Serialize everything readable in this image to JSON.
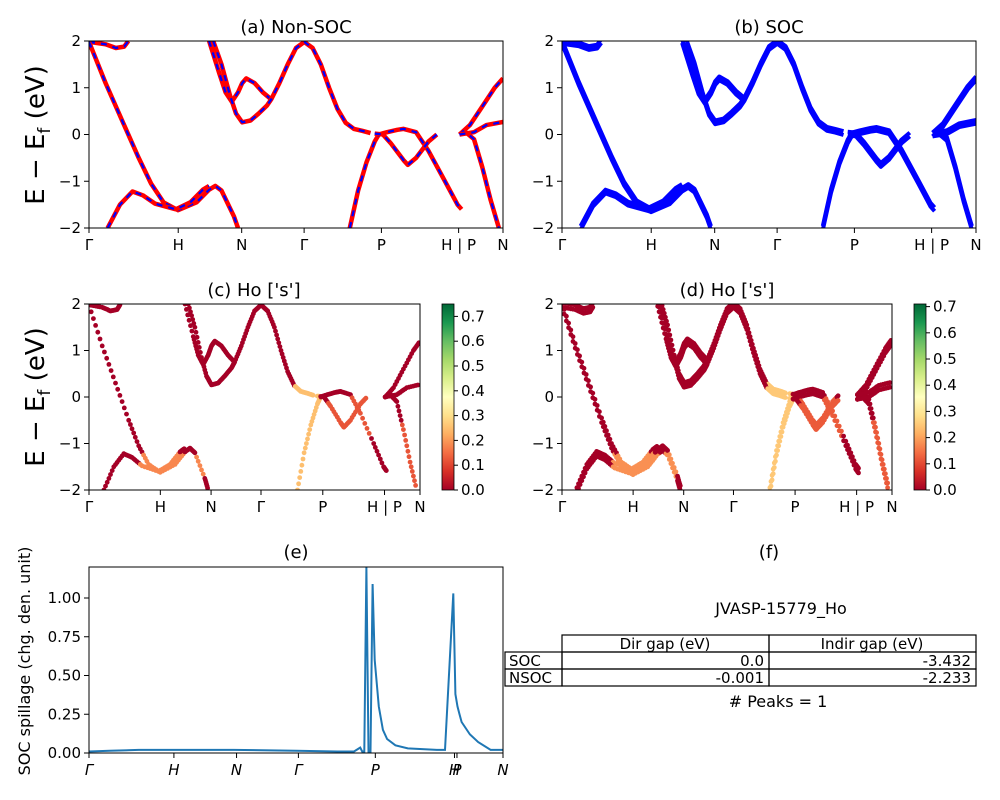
{
  "figure": {
    "ylabel": "E − E_f (eV)",
    "spillage_ylabel": "SOC spillage (chg. den. unit)"
  },
  "chart_data": [
    {
      "id": "a",
      "type": "line",
      "title": "(a) Non-SOC",
      "ylim": [
        -2,
        2
      ],
      "yticks": [
        "−2",
        "−1",
        "0",
        "1",
        "2"
      ],
      "kpoints": [
        "Γ",
        "H",
        "N",
        "Γ",
        "P",
        "H | P",
        "N"
      ],
      "series": [
        {
          "color": "#ff0000",
          "dash_color": "#0000ff"
        }
      ]
    },
    {
      "id": "b",
      "type": "line",
      "title": "(b) SOC",
      "ylim": [
        -2,
        2
      ],
      "yticks": [
        "−2",
        "−1",
        "0",
        "1",
        "2"
      ],
      "kpoints": [
        "Γ",
        "H",
        "N",
        "Γ",
        "P",
        "H | P",
        "N"
      ],
      "series": [
        {
          "color": "#0000ff"
        }
      ]
    },
    {
      "id": "c",
      "type": "scatter",
      "title": "(c)  Ho ['s']",
      "ylim": [
        -2,
        2
      ],
      "yticks": [
        "−2",
        "−1",
        "0",
        "1",
        "2"
      ],
      "kpoints": [
        "Γ",
        "H",
        "N",
        "Γ",
        "P",
        "H | P",
        "N"
      ],
      "colorbar": {
        "range": [
          0,
          0.75
        ],
        "ticks": [
          "0.0",
          "0.1",
          "0.2",
          "0.3",
          "0.4",
          "0.5",
          "0.6",
          "0.7"
        ],
        "colormap": "RdYlGn"
      }
    },
    {
      "id": "d",
      "type": "scatter",
      "title": "(d) Ho ['s']",
      "ylim": [
        -2,
        2
      ],
      "yticks": [
        "−2",
        "−1",
        "0",
        "1",
        "2"
      ],
      "kpoints": [
        "Γ",
        "H",
        "N",
        "Γ",
        "P",
        "H | P",
        "N"
      ],
      "colorbar": {
        "range": [
          0,
          0.71
        ],
        "ticks": [
          "0.0",
          "0.1",
          "0.2",
          "0.3",
          "0.4",
          "0.5",
          "0.6",
          "0.7"
        ],
        "colormap": "RdYlGn"
      }
    },
    {
      "id": "e",
      "type": "line",
      "title": "(e)",
      "ylabel": "SOC spillage (chg. den. unit)",
      "ylim": [
        0,
        1.2
      ],
      "yticks": [
        "0.00",
        "0.25",
        "0.50",
        "0.75",
        "1.00"
      ],
      "kpoints": [
        "Γ",
        "H",
        "N",
        "Γ",
        "P",
        "H",
        "P",
        "N"
      ],
      "series": [
        {
          "color": "#1f77b4",
          "x": [
            0,
            0.05,
            0.12,
            0.2,
            0.35,
            0.5,
            0.6,
            0.64,
            0.655,
            0.66,
            0.665,
            0.67,
            0.675,
            0.68,
            0.685,
            0.69,
            0.7,
            0.71,
            0.72,
            0.74,
            0.77,
            0.84,
            0.86,
            0.88,
            0.885,
            0.89,
            0.895,
            0.9,
            0.92,
            0.94,
            0.97,
            1.0
          ],
          "values": [
            0.01,
            0.015,
            0.02,
            0.02,
            0.02,
            0.015,
            0.01,
            0.01,
            0.035,
            0.01,
            0.01,
            1.2,
            0.01,
            0.01,
            1.09,
            0.6,
            0.3,
            0.15,
            0.09,
            0.05,
            0.03,
            0.02,
            0.02,
            1.03,
            0.38,
            0.3,
            0.25,
            0.2,
            0.12,
            0.07,
            0.02,
            0.02
          ]
        }
      ]
    },
    {
      "id": "f",
      "type": "table",
      "title": "(f)",
      "caption": "JVASP-15779_Ho",
      "columns": [
        "Dir gap (eV)",
        "Indir gap (eV)"
      ],
      "rows": [
        {
          "label": "SOC",
          "dir_gap": "0.0",
          "indir_gap": "-3.432"
        },
        {
          "label": "NSOC",
          "dir_gap": "-0.001",
          "indir_gap": "-2.233"
        }
      ],
      "footer": "# Peaks = 1"
    }
  ]
}
